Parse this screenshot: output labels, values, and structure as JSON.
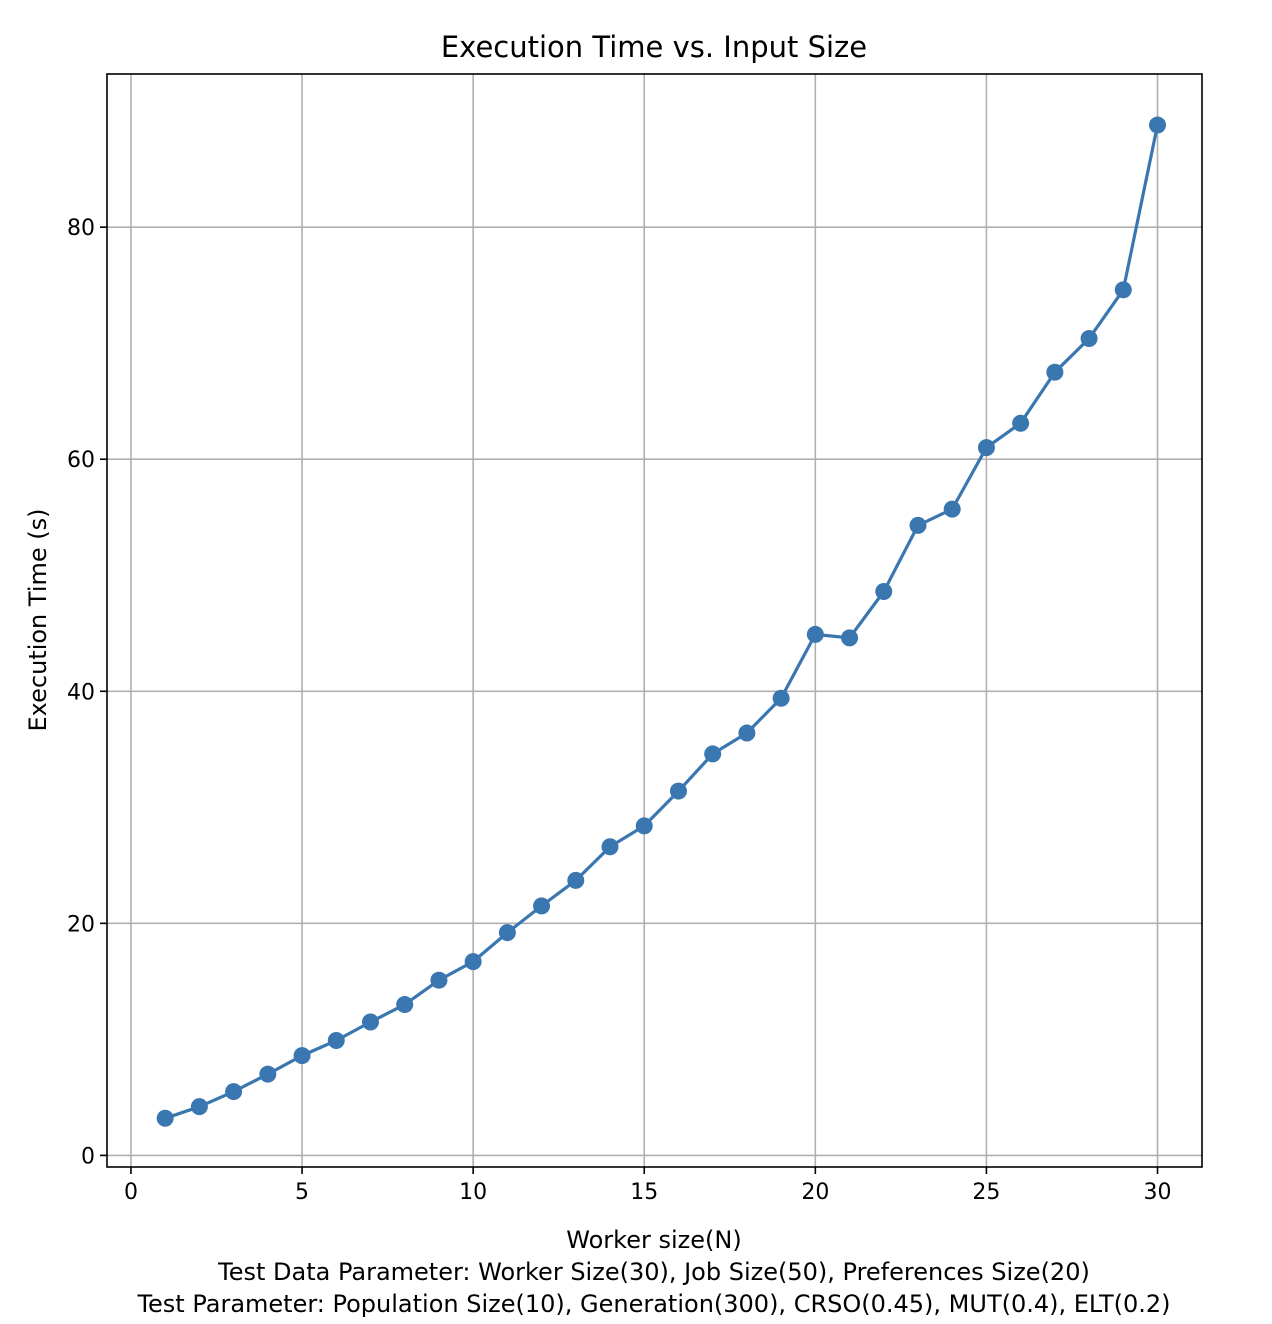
{
  "chart_data": {
    "type": "line",
    "title": "Execution Time vs. Input Size",
    "xlabel": "Worker size(N)",
    "ylabel": "Execution Time (s)",
    "captions": [
      "Test Data Parameter: Worker Size(30), Job Size(50), Preferences Size(20)",
      "Test Parameter: Population Size(10), Generation(300), CRSO(0.45), MUT(0.4), ELT(0.2)"
    ],
    "xlim": [
      -0.7,
      31.3
    ],
    "ylim": [
      -1.0,
      93.2
    ],
    "xticks": [
      0,
      5,
      10,
      15,
      20,
      25,
      30
    ],
    "yticks": [
      0,
      20,
      40,
      60,
      80
    ],
    "grid": true,
    "marker": "circle",
    "color": "#3a76b0",
    "series": [
      {
        "x": [
          1,
          2,
          3,
          4,
          5,
          6,
          7,
          8,
          9,
          10,
          11,
          12,
          13,
          14,
          15,
          16,
          17,
          18,
          19,
          20,
          21,
          22,
          23,
          24,
          25,
          26,
          27,
          28,
          29,
          30
        ],
        "values": [
          3.2,
          4.2,
          5.5,
          7.0,
          8.6,
          9.9,
          11.5,
          13.0,
          15.1,
          16.7,
          19.2,
          21.5,
          23.7,
          26.6,
          28.4,
          31.4,
          34.6,
          36.4,
          39.4,
          44.9,
          44.6,
          48.6,
          54.3,
          55.7,
          61.0,
          63.1,
          67.5,
          70.4,
          74.6,
          88.8
        ]
      }
    ]
  }
}
